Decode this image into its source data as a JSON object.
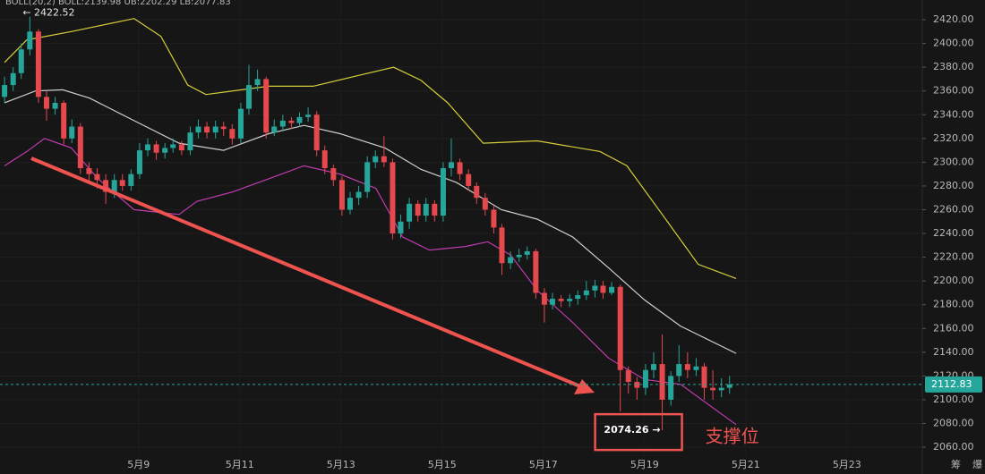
{
  "chart_data": {
    "type": "candlestick",
    "indicator": "BOLL(20,2)  BOLL:2139.98  UB:2202.29  LB:2077.83",
    "x": [
      6.35,
      6.52,
      6.68,
      6.85,
      7.02,
      7.18,
      7.35,
      7.52,
      7.68,
      7.85,
      8.02,
      8.18,
      8.35,
      8.52,
      8.68,
      8.85,
      9.02,
      9.18,
      9.35,
      9.52,
      9.68,
      9.85,
      10.02,
      10.18,
      10.35,
      10.52,
      10.68,
      10.85,
      11.02,
      11.18,
      11.35,
      11.52,
      11.68,
      11.85,
      12.02,
      12.18,
      12.35,
      12.52,
      12.68,
      12.85,
      13.02,
      13.18,
      13.35,
      13.52,
      13.68,
      13.85,
      14.02,
      14.18,
      14.35,
      14.52,
      14.68,
      14.85,
      15.02,
      15.18,
      15.35,
      15.52,
      15.68,
      15.85,
      16.02,
      16.18,
      16.35,
      16.52,
      16.68,
      16.85,
      17.02,
      17.18,
      17.35,
      17.52,
      17.68,
      17.85,
      18.02,
      18.18,
      18.35,
      18.52,
      18.68,
      18.85,
      19.02,
      19.18,
      19.35,
      19.52,
      19.68,
      19.85,
      20.02,
      20.18,
      20.35,
      20.52,
      20.68
    ],
    "open": [
      2355,
      2365,
      2375,
      2395,
      2410,
      2355,
      2345,
      2350,
      2320,
      2330,
      2295,
      2290,
      2285,
      2275,
      2285,
      2280,
      2290,
      2310,
      2315,
      2308,
      2312,
      2315,
      2310,
      2325,
      2330,
      2325,
      2330,
      2328,
      2320,
      2345,
      2365,
      2370,
      2325,
      2330,
      2335,
      2333,
      2338,
      2340,
      2310,
      2295,
      2285,
      2260,
      2270,
      2275,
      2300,
      2305,
      2300,
      2240,
      2250,
      2265,
      2255,
      2265,
      2255,
      2295,
      2300,
      2290,
      2280,
      2270,
      2260,
      2245,
      2215,
      2220,
      2222,
      2225,
      2190,
      2180,
      2185,
      2183,
      2185,
      2188,
      2192,
      2196,
      2190,
      2195,
      2125,
      2115,
      2110,
      2125,
      2130,
      2100,
      2120,
      2130,
      2125,
      2128,
      2110,
      2108,
      2110
    ],
    "high": [
      2372,
      2380,
      2400,
      2422.52,
      2412,
      2360,
      2355,
      2352,
      2336,
      2333,
      2300,
      2295,
      2290,
      2290,
      2290,
      2294,
      2316,
      2320,
      2318,
      2316,
      2320,
      2318,
      2330,
      2336,
      2334,
      2335,
      2334,
      2332,
      2350,
      2382,
      2378,
      2372,
      2336,
      2340,
      2338,
      2342,
      2346,
      2343,
      2314,
      2298,
      2288,
      2275,
      2280,
      2305,
      2310,
      2322,
      2303,
      2256,
      2270,
      2268,
      2270,
      2268,
      2300,
      2320,
      2303,
      2294,
      2283,
      2274,
      2263,
      2248,
      2225,
      2227,
      2229,
      2227,
      2194,
      2190,
      2188,
      2189,
      2192,
      2200,
      2201,
      2200,
      2199,
      2197,
      2128,
      2119,
      2130,
      2140,
      2155,
      2124,
      2146,
      2140,
      2135,
      2131,
      2125,
      2118,
      2120
    ],
    "low": [
      2350,
      2360,
      2370,
      2390,
      2350,
      2335,
      2340,
      2315,
      2316,
      2290,
      2284,
      2278,
      2265,
      2270,
      2276,
      2276,
      2286,
      2305,
      2302,
      2303,
      2308,
      2306,
      2306,
      2320,
      2320,
      2320,
      2322,
      2315,
      2316,
      2340,
      2360,
      2320,
      2322,
      2326,
      2328,
      2330,
      2334,
      2305,
      2290,
      2280,
      2255,
      2256,
      2264,
      2270,
      2295,
      2296,
      2235,
      2236,
      2244,
      2250,
      2250,
      2250,
      2250,
      2288,
      2285,
      2276,
      2265,
      2255,
      2240,
      2205,
      2210,
      2216,
      2218,
      2185,
      2165,
      2176,
      2178,
      2178,
      2180,
      2184,
      2186,
      2185,
      2188,
      2090,
      2105,
      2100,
      2104,
      2118,
      2074.26,
      2095,
      2115,
      2118,
      2120,
      2100,
      2100,
      2102,
      2105
    ],
    "close": [
      2365,
      2375,
      2395,
      2410,
      2355,
      2345,
      2350,
      2320,
      2330,
      2295,
      2290,
      2285,
      2275,
      2285,
      2280,
      2290,
      2310,
      2315,
      2308,
      2312,
      2315,
      2310,
      2325,
      2330,
      2325,
      2330,
      2328,
      2320,
      2345,
      2365,
      2370,
      2325,
      2330,
      2335,
      2333,
      2338,
      2340,
      2310,
      2295,
      2285,
      2260,
      2270,
      2275,
      2300,
      2305,
      2300,
      2240,
      2250,
      2265,
      2255,
      2265,
      2255,
      2295,
      2300,
      2290,
      2280,
      2270,
      2260,
      2245,
      2215,
      2220,
      2222,
      2225,
      2190,
      2180,
      2185,
      2183,
      2185,
      2188,
      2192,
      2196,
      2190,
      2195,
      2125,
      2115,
      2110,
      2125,
      2130,
      2100,
      2120,
      2130,
      2125,
      2128,
      2110,
      2108,
      2110,
      2112.83
    ],
    "up_color": "#26a69a",
    "down_color": "#e5484d",
    "overlays": [
      {
        "color": "#d6cf3a",
        "x": [
          6.35,
          6.79,
          7.67,
          8.91,
          9.44,
          9.97,
          10.33,
          11.57,
          12.45,
          13.34,
          14.04,
          14.58,
          15.11,
          15.81,
          16.88,
          18.12,
          18.65,
          19.35,
          20.06,
          20.81
        ],
        "values": [
          2384,
          2403,
          2410,
          2421,
          2406,
          2365,
          2357,
          2364,
          2364,
          2373,
          2380,
          2369,
          2350,
          2316,
          2318,
          2309,
          2297,
          2256,
          2214,
          2202
        ]
      },
      {
        "color": "#cfcfcf",
        "x": [
          6.35,
          6.96,
          7.5,
          8.03,
          8.91,
          9.8,
          10.68,
          11.57,
          12.27,
          12.98,
          13.87,
          14.58,
          15.28,
          16.17,
          16.88,
          17.58,
          18.29,
          19.0,
          19.71,
          20.81
        ],
        "values": [
          2350,
          2360,
          2361,
          2354,
          2335,
          2316,
          2310,
          2324,
          2331,
          2324,
          2312,
          2294,
          2283,
          2260,
          2252,
          2237,
          2211,
          2184,
          2162,
          2139
        ]
      },
      {
        "color": "#c03cb0",
        "x": [
          6.35,
          6.79,
          7.14,
          7.67,
          8.2,
          8.91,
          9.8,
          10.15,
          10.86,
          11.57,
          12.27,
          12.98,
          13.69,
          14.22,
          14.75,
          15.46,
          15.9,
          16.35,
          16.88,
          17.58,
          18.29,
          19.0,
          19.71,
          20.81
        ],
        "values": [
          2297,
          2309,
          2320,
          2312,
          2286,
          2260,
          2256,
          2267,
          2275,
          2286,
          2297,
          2290,
          2278,
          2237,
          2226,
          2229,
          2233,
          2222,
          2192,
          2165,
          2135,
          2117,
          2113,
          2079
        ]
      }
    ],
    "xlim": [
      6.26,
      24.49
    ],
    "ylim": [
      2052.5,
      2436.6
    ],
    "xticks": [
      {
        "value": 9,
        "label": "5月9"
      },
      {
        "value": 11,
        "label": "5月11"
      },
      {
        "value": 13,
        "label": "5月13"
      },
      {
        "value": 15,
        "label": "5月15"
      },
      {
        "value": 17,
        "label": "5月17"
      },
      {
        "value": 19,
        "label": "5月19"
      },
      {
        "value": 21,
        "label": "5月21"
      },
      {
        "value": 23,
        "label": "5月23"
      }
    ],
    "yticks": [
      {
        "value": 2060,
        "label": "2060.00"
      },
      {
        "value": 2080,
        "label": "2080.00"
      },
      {
        "value": 2100,
        "label": "2100.00"
      },
      {
        "value": 2120,
        "label": "2120.00"
      },
      {
        "value": 2140,
        "label": "2140.00"
      },
      {
        "value": 2160,
        "label": "2160.00"
      },
      {
        "value": 2180,
        "label": "2180.00"
      },
      {
        "value": 2200,
        "label": "2200.00"
      },
      {
        "value": 2220,
        "label": "2220.00"
      },
      {
        "value": 2240,
        "label": "2240.00"
      },
      {
        "value": 2260,
        "label": "2260.00"
      },
      {
        "value": 2280,
        "label": "2280.00"
      },
      {
        "value": 2300,
        "label": "2300.00"
      },
      {
        "value": 2320,
        "label": "2320.00"
      },
      {
        "value": 2340,
        "label": "2340.00"
      },
      {
        "value": 2360,
        "label": "2360.00"
      },
      {
        "value": 2380,
        "label": "2380.00"
      },
      {
        "value": 2400,
        "label": "2400.00"
      },
      {
        "value": 2420,
        "label": "2420.00"
      }
    ],
    "grid": true,
    "last_price": {
      "value": 2112.83,
      "label": "2112.83"
    },
    "high_label": "← 2422.52",
    "low_label": "2074.26 →",
    "support_label": "支撑位",
    "toolbar": [
      "筹",
      "爆"
    ]
  }
}
